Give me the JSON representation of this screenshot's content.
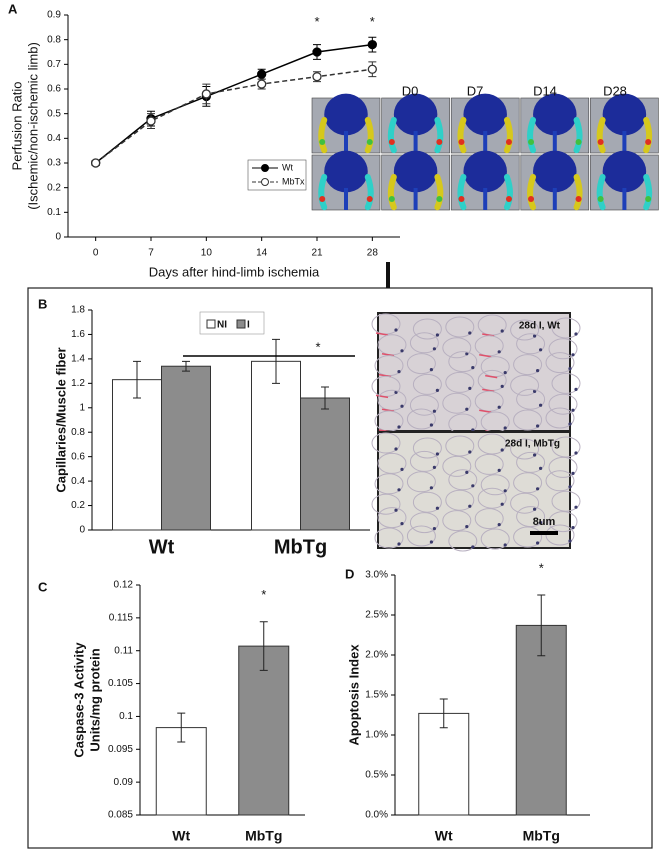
{
  "chart_data": [
    {
      "type": "line",
      "panel": "A",
      "ylabel": [
        "Perfusion Ratio",
        "(Ischemic/non-ischemic limb)"
      ],
      "xlabel": "Days after hind-limb ischemia",
      "categories": [
        "0",
        "7",
        "10",
        "14",
        "21",
        "28"
      ],
      "ylim": [
        0,
        0.9
      ],
      "yticks": [
        0,
        0.1,
        0.2,
        0.3,
        0.4,
        0.5,
        0.6,
        0.7,
        0.8,
        0.9
      ],
      "series": [
        {
          "name": "Wt",
          "color": "#000000",
          "line_style": "solid",
          "marker": "filled",
          "values": [
            0.3,
            0.48,
            0.57,
            0.66,
            0.75,
            0.78
          ],
          "errors": [
            0.01,
            0.03,
            0.04,
            0.02,
            0.03,
            0.03
          ]
        },
        {
          "name": "MbTx",
          "color": "#333333",
          "line_style": "dashed",
          "marker": "open",
          "values": [
            0.3,
            0.47,
            0.58,
            0.62,
            0.65,
            0.68
          ],
          "errors": [
            0.01,
            0.03,
            0.04,
            0.02,
            0.02,
            0.03
          ]
        }
      ],
      "annotations": [
        "*",
        "*"
      ],
      "image_labels": [
        "D0",
        "D7",
        "D14",
        "D28"
      ]
    },
    {
      "type": "bar",
      "panel": "B",
      "ylabel": [
        "Capillaries/Muscle fiber"
      ],
      "categories": [
        "Wt",
        "MbTg"
      ],
      "ylim": [
        0,
        1.8
      ],
      "yticks": [
        0,
        0.2,
        0.4,
        0.6,
        0.8,
        1,
        1.2,
        1.4,
        1.6,
        1.8
      ],
      "series": [
        {
          "name": "NI",
          "color": "#ffffff",
          "values": [
            1.23,
            1.38
          ],
          "errors": [
            0.15,
            0.18
          ]
        },
        {
          "name": "I",
          "color": "#8c8c8c",
          "values": [
            1.34,
            1.08
          ],
          "errors": [
            0.04,
            0.09
          ]
        }
      ],
      "annotations": [
        "*"
      ],
      "image_labels": [
        "28d I, Wt",
        "28d I, MbTg"
      ],
      "scale_bar": "8um"
    },
    {
      "type": "bar",
      "panel": "C",
      "ylabel": [
        "Caspase-3 Activity",
        "Units/mg protein"
      ],
      "categories": [
        "Wt",
        "MbTg"
      ],
      "ylim": [
        0.085,
        0.12
      ],
      "yticks": [
        0.085,
        0.09,
        0.095,
        0.1,
        0.105,
        0.11,
        0.115,
        0.12
      ],
      "series": [
        {
          "colors": [
            "#ffffff",
            "#8c8c8c"
          ],
          "values": [
            0.0983,
            0.1107
          ],
          "errors": [
            0.0022,
            0.0037
          ]
        }
      ],
      "annotations": [
        "*"
      ]
    },
    {
      "type": "bar",
      "panel": "D",
      "ylabel": [
        "Apoptosis Index"
      ],
      "categories": [
        "Wt",
        "MbTg"
      ],
      "ylim": [
        0,
        3
      ],
      "yticks": [
        {
          "value": 0,
          "label": "0.0%"
        },
        {
          "value": 0.5,
          "label": "0.5%"
        },
        {
          "value": 1,
          "label": "1.0%"
        },
        {
          "value": 1.5,
          "label": "1.5%"
        },
        {
          "value": 2,
          "label": "2.0%"
        },
        {
          "value": 2.5,
          "label": "2.5%"
        },
        {
          "value": 3,
          "label": "3.0%"
        }
      ],
      "series": [
        {
          "colors": [
            "#ffffff",
            "#8c8c8c"
          ],
          "values": [
            1.27,
            2.37
          ],
          "errors": [
            0.18,
            0.38
          ]
        }
      ],
      "annotations": [
        "*"
      ]
    }
  ]
}
